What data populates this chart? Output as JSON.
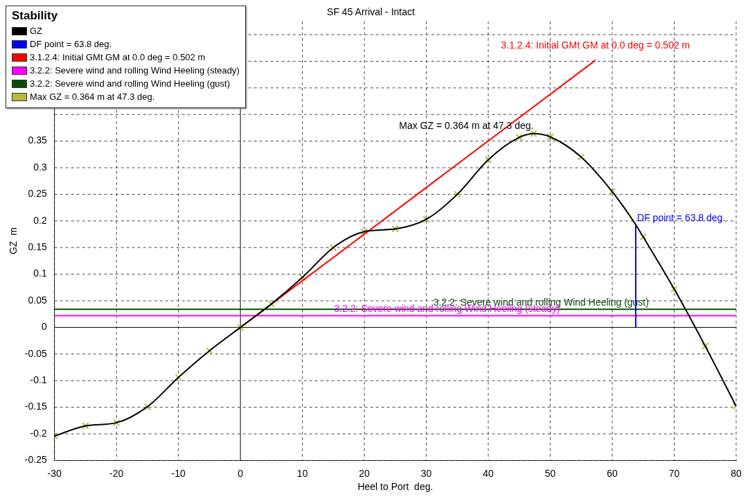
{
  "chart_data": {
    "type": "line",
    "title": "SF 45 Arrival - Intact",
    "xlabel": "Heel to Port  deg.",
    "ylabel": "GZ  m",
    "legend_title": "Stability",
    "legend": "top left",
    "grid": true,
    "xlim": [
      -30,
      80
    ],
    "xticks": [
      -30,
      -20,
      -10,
      0,
      10,
      20,
      30,
      40,
      50,
      60,
      70,
      80
    ],
    "ylim": [
      -0.25,
      0.575
    ],
    "yticks": [
      -0.25,
      -0.2,
      -0.15,
      -0.1,
      -0.05,
      0,
      0.05,
      0.1,
      0.15,
      0.2,
      0.25,
      0.3,
      0.35,
      {
        "value": 0.4,
        "label": null
      },
      {
        "value": 0.45,
        "label": null
      },
      {
        "value": 0.5,
        "label": null
      },
      {
        "value": 0.55,
        "label": null
      }
    ],
    "series": [
      {
        "name": "GZ",
        "color": "#000000",
        "marker": "none",
        "x": [
          -30,
          -25,
          -20,
          -15,
          -10,
          -5,
          0,
          5,
          10,
          15,
          20,
          25,
          30,
          35,
          40,
          45,
          47.3,
          50,
          55,
          60,
          63.8,
          65,
          70,
          75,
          80
        ],
        "values": [
          -0.204,
          -0.185,
          -0.179,
          -0.149,
          -0.094,
          -0.044,
          0,
          0.044,
          0.094,
          0.15,
          0.18,
          0.185,
          0.203,
          0.25,
          0.315,
          0.357,
          0.364,
          0.358,
          0.32,
          0.255,
          0.193,
          0.17,
          0.072,
          -0.035,
          -0.148
        ]
      },
      {
        "name": "DF point = 63.8 deg.",
        "color": "#0000ff",
        "type": "line",
        "marker": "none",
        "x": [
          63.8,
          63.8
        ],
        "values": [
          0,
          0.193
        ]
      },
      {
        "name": "3.1.2.4: Initial GMt GM at 0.0 deg = 0.502 m",
        "color": "#ff0000",
        "type": "line",
        "marker": "none",
        "x": [
          0,
          57.3
        ],
        "values": [
          0,
          0.502
        ]
      },
      {
        "name": "3.2.2: Severe wind and rolling Wind Heeling (steady)",
        "color": "#ff00ff",
        "type": "line",
        "marker": "none",
        "x": [
          -30,
          80
        ],
        "values": [
          0.022,
          0.022
        ]
      },
      {
        "name": "3.2.2: Severe wind and rolling Wind Heeling (gust)",
        "color": "#0b4a0b",
        "type": "line",
        "marker": "none",
        "x": [
          -30,
          80
        ],
        "values": [
          0.034,
          0.034
        ]
      },
      {
        "name": "Max GZ = 0.364 m at 47.3 deg.",
        "color": "#b8b840",
        "type": "scatter",
        "marker": "cross",
        "x": [
          47.3
        ],
        "values": [
          0.364
        ]
      },
      {
        "color": "#b8b840",
        "type": "scatter",
        "marker": "cross",
        "x": [
          -30,
          -25,
          -20,
          -15,
          -10,
          -5,
          0,
          5,
          10,
          15,
          20,
          25,
          30,
          35,
          40,
          45,
          50,
          55,
          60,
          65,
          70,
          75,
          80
        ],
        "values": [
          -0.204,
          -0.185,
          -0.179,
          -0.149,
          -0.094,
          -0.044,
          0,
          0.044,
          0.094,
          0.15,
          0.18,
          0.185,
          0.203,
          0.25,
          0.315,
          0.357,
          0.358,
          0.32,
          0.255,
          0.17,
          0.072,
          -0.035,
          -0.148
        ]
      }
    ],
    "annotations": [
      {
        "text": "3.1.2.4: Initial GMt GM at 0.0 deg = 0.502 m",
        "x": 57.3,
        "y": 0.502
      },
      {
        "text": "Max GZ = 0.364 m at 47.3 deg.",
        "x": 47.3,
        "y": 0.364
      },
      {
        "text": "DF point = 63.8 deg.",
        "x": 63.8,
        "y": 0.193
      },
      {
        "text": "3.2.2: Severe wind and rolling Wind Heeling (gust)",
        "x": 30.9,
        "y": 0.034
      },
      {
        "text": "3.2.2: Severe wind and rolling Wind Heeling (steady)",
        "x": 14.9,
        "y": 0.022
      }
    ]
  }
}
